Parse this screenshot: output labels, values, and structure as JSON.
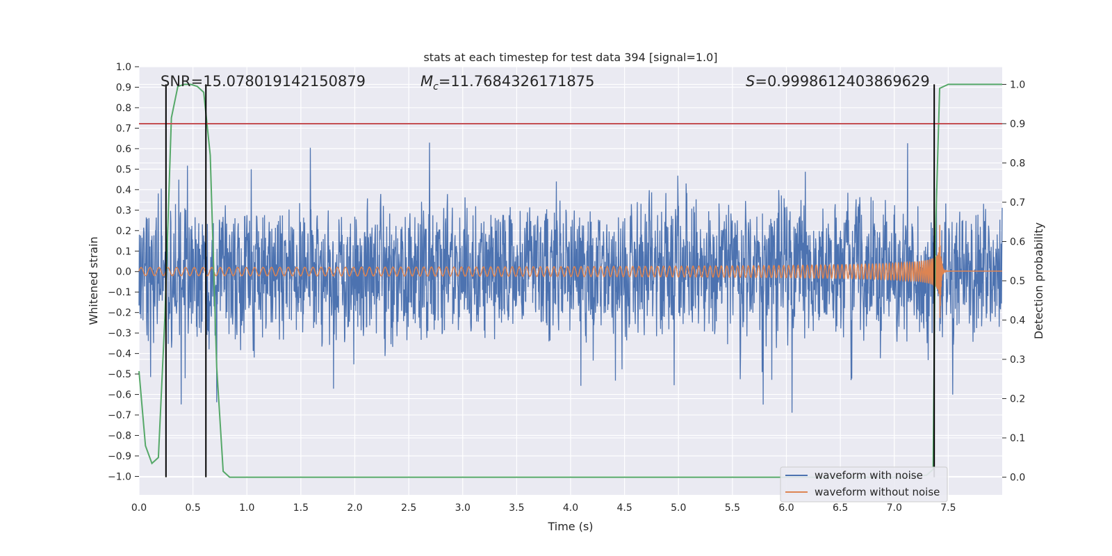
{
  "chart_data": {
    "type": "line",
    "title": "stats at each timestep for test data 394 [signal=1.0]",
    "xlabel": "Time (s)",
    "ylabel": "Whitened strain",
    "y2label": "Detection probability",
    "xlim": [
      0.0,
      8.0
    ],
    "ylim": [
      -1.09,
      1.0
    ],
    "y2lim": [
      -0.045,
      1.045
    ],
    "xticks": [
      "0.0",
      "0.5",
      "1.0",
      "1.5",
      "2.0",
      "2.5",
      "3.0",
      "3.5",
      "4.0",
      "4.5",
      "5.0",
      "5.5",
      "6.0",
      "6.5",
      "7.0",
      "7.5"
    ],
    "yticks": [
      "1.0",
      "0.9",
      "0.8",
      "0.7",
      "0.6",
      "0.5",
      "0.4",
      "0.3",
      "0.2",
      "0.1",
      "0.0",
      "−0.1",
      "−0.2",
      "−0.3",
      "−0.4",
      "−0.5",
      "−0.6",
      "−0.7",
      "−0.8",
      "−0.9",
      "−1.0"
    ],
    "y2ticks": [
      "1.0",
      "0.9",
      "0.8",
      "0.7",
      "0.6",
      "0.5",
      "0.4",
      "0.3",
      "0.2",
      "0.1",
      "0.0"
    ],
    "grid": true,
    "legend_position": "lower-right",
    "stats": {
      "snr": "SNR=15.078019142150879",
      "mc_symbol": "M",
      "mc_sub": "c",
      "mc_value": "=11.7684326171875",
      "s_symbol": "S",
      "s_value": "=0.9998612403869629"
    },
    "series": [
      {
        "name": "waveform with noise",
        "color": "#4c72b0",
        "axis": "left",
        "description_type": "noisy strain, amplitude ~0.3-0.95"
      },
      {
        "name": "waveform without noise",
        "color": "#dd8452",
        "axis": "left",
        "chirp": {
          "start": 0.0,
          "merger": 7.42,
          "initial_amplitude": 0.02,
          "peak_amplitude": 0.31,
          "initial_frequency_hz": 12,
          "ringdown_amplitude": 0.01
        }
      },
      {
        "name": "",
        "color": "#55a868",
        "axis": "right",
        "x": [
          0.0,
          0.06,
          0.12,
          0.18,
          0.24,
          0.3,
          0.36,
          0.42,
          0.48,
          0.54,
          0.6,
          0.66,
          0.72,
          0.78,
          0.84,
          0.87,
          1.0,
          7.0,
          7.3,
          7.36,
          7.38,
          7.42,
          7.5,
          8.0
        ],
        "y": [
          0.27,
          0.08,
          0.035,
          0.05,
          0.41,
          0.915,
          0.995,
          1.0,
          1.0,
          0.995,
          0.98,
          0.82,
          0.28,
          0.015,
          0.0,
          0.0,
          0.0,
          0.0,
          0.005,
          0.02,
          0.6,
          0.99,
          1.0,
          1.0
        ]
      }
    ],
    "threshold": {
      "value": 0.9,
      "axis": "right",
      "color": "#c44e52"
    },
    "vlines": [
      0.25,
      0.62,
      7.37
    ],
    "vline_range": [
      0.0,
      1.0
    ],
    "legend": [
      {
        "label": "waveform with noise",
        "color": "#4c72b0"
      },
      {
        "label": "waveform without noise",
        "color": "#dd8452"
      }
    ]
  }
}
